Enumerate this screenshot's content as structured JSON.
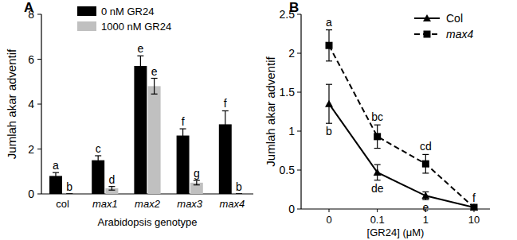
{
  "chart_data": [
    {
      "type": "bar",
      "title": "A",
      "categories": [
        "col",
        "max1",
        "max2",
        "max3",
        "max4"
      ],
      "x_label": "Arabidopsis genotype",
      "y_label": "Jumlah akar adventif",
      "ylim": [
        0,
        8
      ],
      "yticks": [
        0,
        2,
        4,
        6,
        8
      ],
      "legend": "top-left",
      "series": [
        {
          "name": "0 nM GR24",
          "color": "#000000",
          "values": [
            0.8,
            1.5,
            5.7,
            2.6,
            3.1
          ],
          "errors": [
            0.15,
            0.2,
            0.45,
            0.3,
            0.6
          ],
          "letters": [
            "a",
            "c",
            "e",
            "f",
            "f"
          ]
        },
        {
          "name": "1000 nM GR24",
          "color": "#c0c0c0",
          "values": [
            0,
            0.25,
            4.8,
            0.5,
            0
          ],
          "errors": [
            0,
            0.08,
            0.35,
            0.1,
            0
          ],
          "letters": [
            "b",
            "d",
            "e",
            "g",
            "b"
          ]
        }
      ]
    },
    {
      "type": "line",
      "title": "B",
      "categories": [
        "0",
        "0.1",
        "1",
        "10"
      ],
      "x_label": "[GR24] (μM)",
      "y_label": "Jumlah akar adventif",
      "ylim": [
        0,
        2.5
      ],
      "yticks": [
        0,
        0.5,
        1,
        1.5,
        2,
        2.5
      ],
      "legend": "top-right",
      "series": [
        {
          "name": "Col",
          "color": "#000000",
          "marker": "triangle",
          "line_style": "solid",
          "values": [
            1.35,
            0.47,
            0.17,
            0.02
          ],
          "errors": [
            0.25,
            0.1,
            0.05,
            0.02
          ],
          "letters": [
            "b",
            "de",
            "e",
            null
          ]
        },
        {
          "name": "max4",
          "color": "#000000",
          "marker": "square",
          "line_style": "dashed",
          "values": [
            2.1,
            0.93,
            0.58,
            0.02
          ],
          "errors": [
            0.2,
            0.15,
            0.12,
            0.02
          ],
          "letters": [
            "a",
            "bc",
            "cd",
            "f"
          ]
        }
      ]
    }
  ]
}
